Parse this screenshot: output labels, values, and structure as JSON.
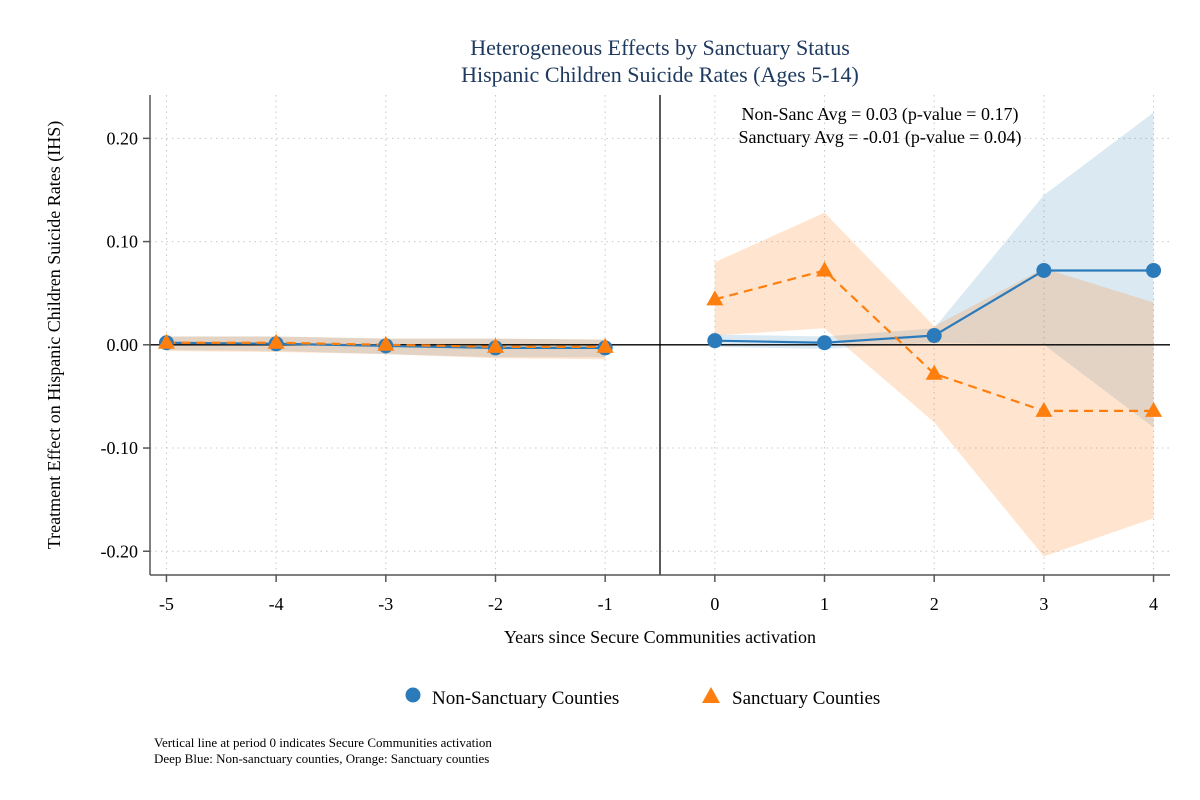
{
  "chart_data": {
    "type": "line",
    "title": "Heterogeneous Effects by Sanctuary Status",
    "subtitle": "Hispanic Children Suicide Rates (Ages 5-14)",
    "xlabel": "Years since Secure Communities activation",
    "ylabel": "Treatment Effect on Hispanic Children Suicide Rates (IHS)",
    "x": [
      -5,
      -4,
      -3,
      -2,
      -1,
      0,
      1,
      2,
      3,
      4
    ],
    "x_tick_labels": [
      "-5",
      "-4",
      "-3",
      "-2",
      "-1",
      "0",
      "1",
      "2",
      "3",
      "4"
    ],
    "xlim": [
      -5.15,
      4.15
    ],
    "y_ticks": [
      0.2,
      0.1,
      0.0,
      -0.1,
      -0.2
    ],
    "y_tick_labels": [
      "0.20",
      "0.10",
      "0.00",
      "-0.10",
      "-0.20"
    ],
    "ylim": [
      -0.223,
      0.242
    ],
    "grid": true,
    "vertical_line_x": -0.5,
    "series": [
      {
        "name": "Non-Sanctuary Counties",
        "color": "#2b7bba",
        "marker": "circle",
        "line_style": "solid",
        "segments": [
          {
            "x": [
              -5,
              -4,
              -3,
              -2,
              -1
            ],
            "values": [
              0.002,
              0.001,
              -0.001,
              -0.003,
              -0.003
            ],
            "ci_lower": [
              -0.005,
              -0.006,
              -0.009,
              -0.012,
              -0.012
            ],
            "ci_upper": [
              0.008,
              0.008,
              0.006,
              0.006,
              0.005
            ]
          },
          {
            "x": [
              0,
              1,
              2,
              3,
              4
            ],
            "values": [
              0.004,
              0.002,
              0.009,
              0.072,
              0.072
            ],
            "ci_lower": [
              -0.002,
              -0.004,
              0.002,
              0.0,
              -0.08
            ],
            "ci_upper": [
              0.01,
              0.008,
              0.016,
              0.145,
              0.225
            ]
          }
        ]
      },
      {
        "name": "Sanctuary Counties",
        "color": "#ff7f0e",
        "marker": "triangle",
        "line_style": "dashed",
        "segments": [
          {
            "x": [
              -5,
              -4,
              -3,
              -2,
              -1
            ],
            "values": [
              0.002,
              0.002,
              0.0,
              -0.002,
              -0.002
            ],
            "ci_lower": [
              -0.006,
              -0.007,
              -0.009,
              -0.013,
              -0.014
            ],
            "ci_upper": [
              0.008,
              0.008,
              0.006,
              0.006,
              0.005
            ]
          },
          {
            "x": [
              0,
              1,
              2,
              3,
              4
            ],
            "values": [
              0.044,
              0.072,
              -0.028,
              -0.064,
              -0.064
            ],
            "ci_lower": [
              0.009,
              0.016,
              -0.075,
              -0.205,
              -0.168
            ],
            "ci_upper": [
              0.08,
              0.128,
              0.018,
              0.074,
              0.041
            ]
          }
        ]
      }
    ],
    "annotations": [
      "Non-Sanc Avg = 0.03 (p-value = 0.17)",
      "Sanctuary Avg = -0.01 (p-value = 0.04)"
    ],
    "legend_position": "bottom"
  },
  "notes": [
    "Vertical line at period 0 indicates Secure Communities activation",
    "Deep Blue: Non-sanctuary counties, Orange: Sanctuary counties"
  ]
}
